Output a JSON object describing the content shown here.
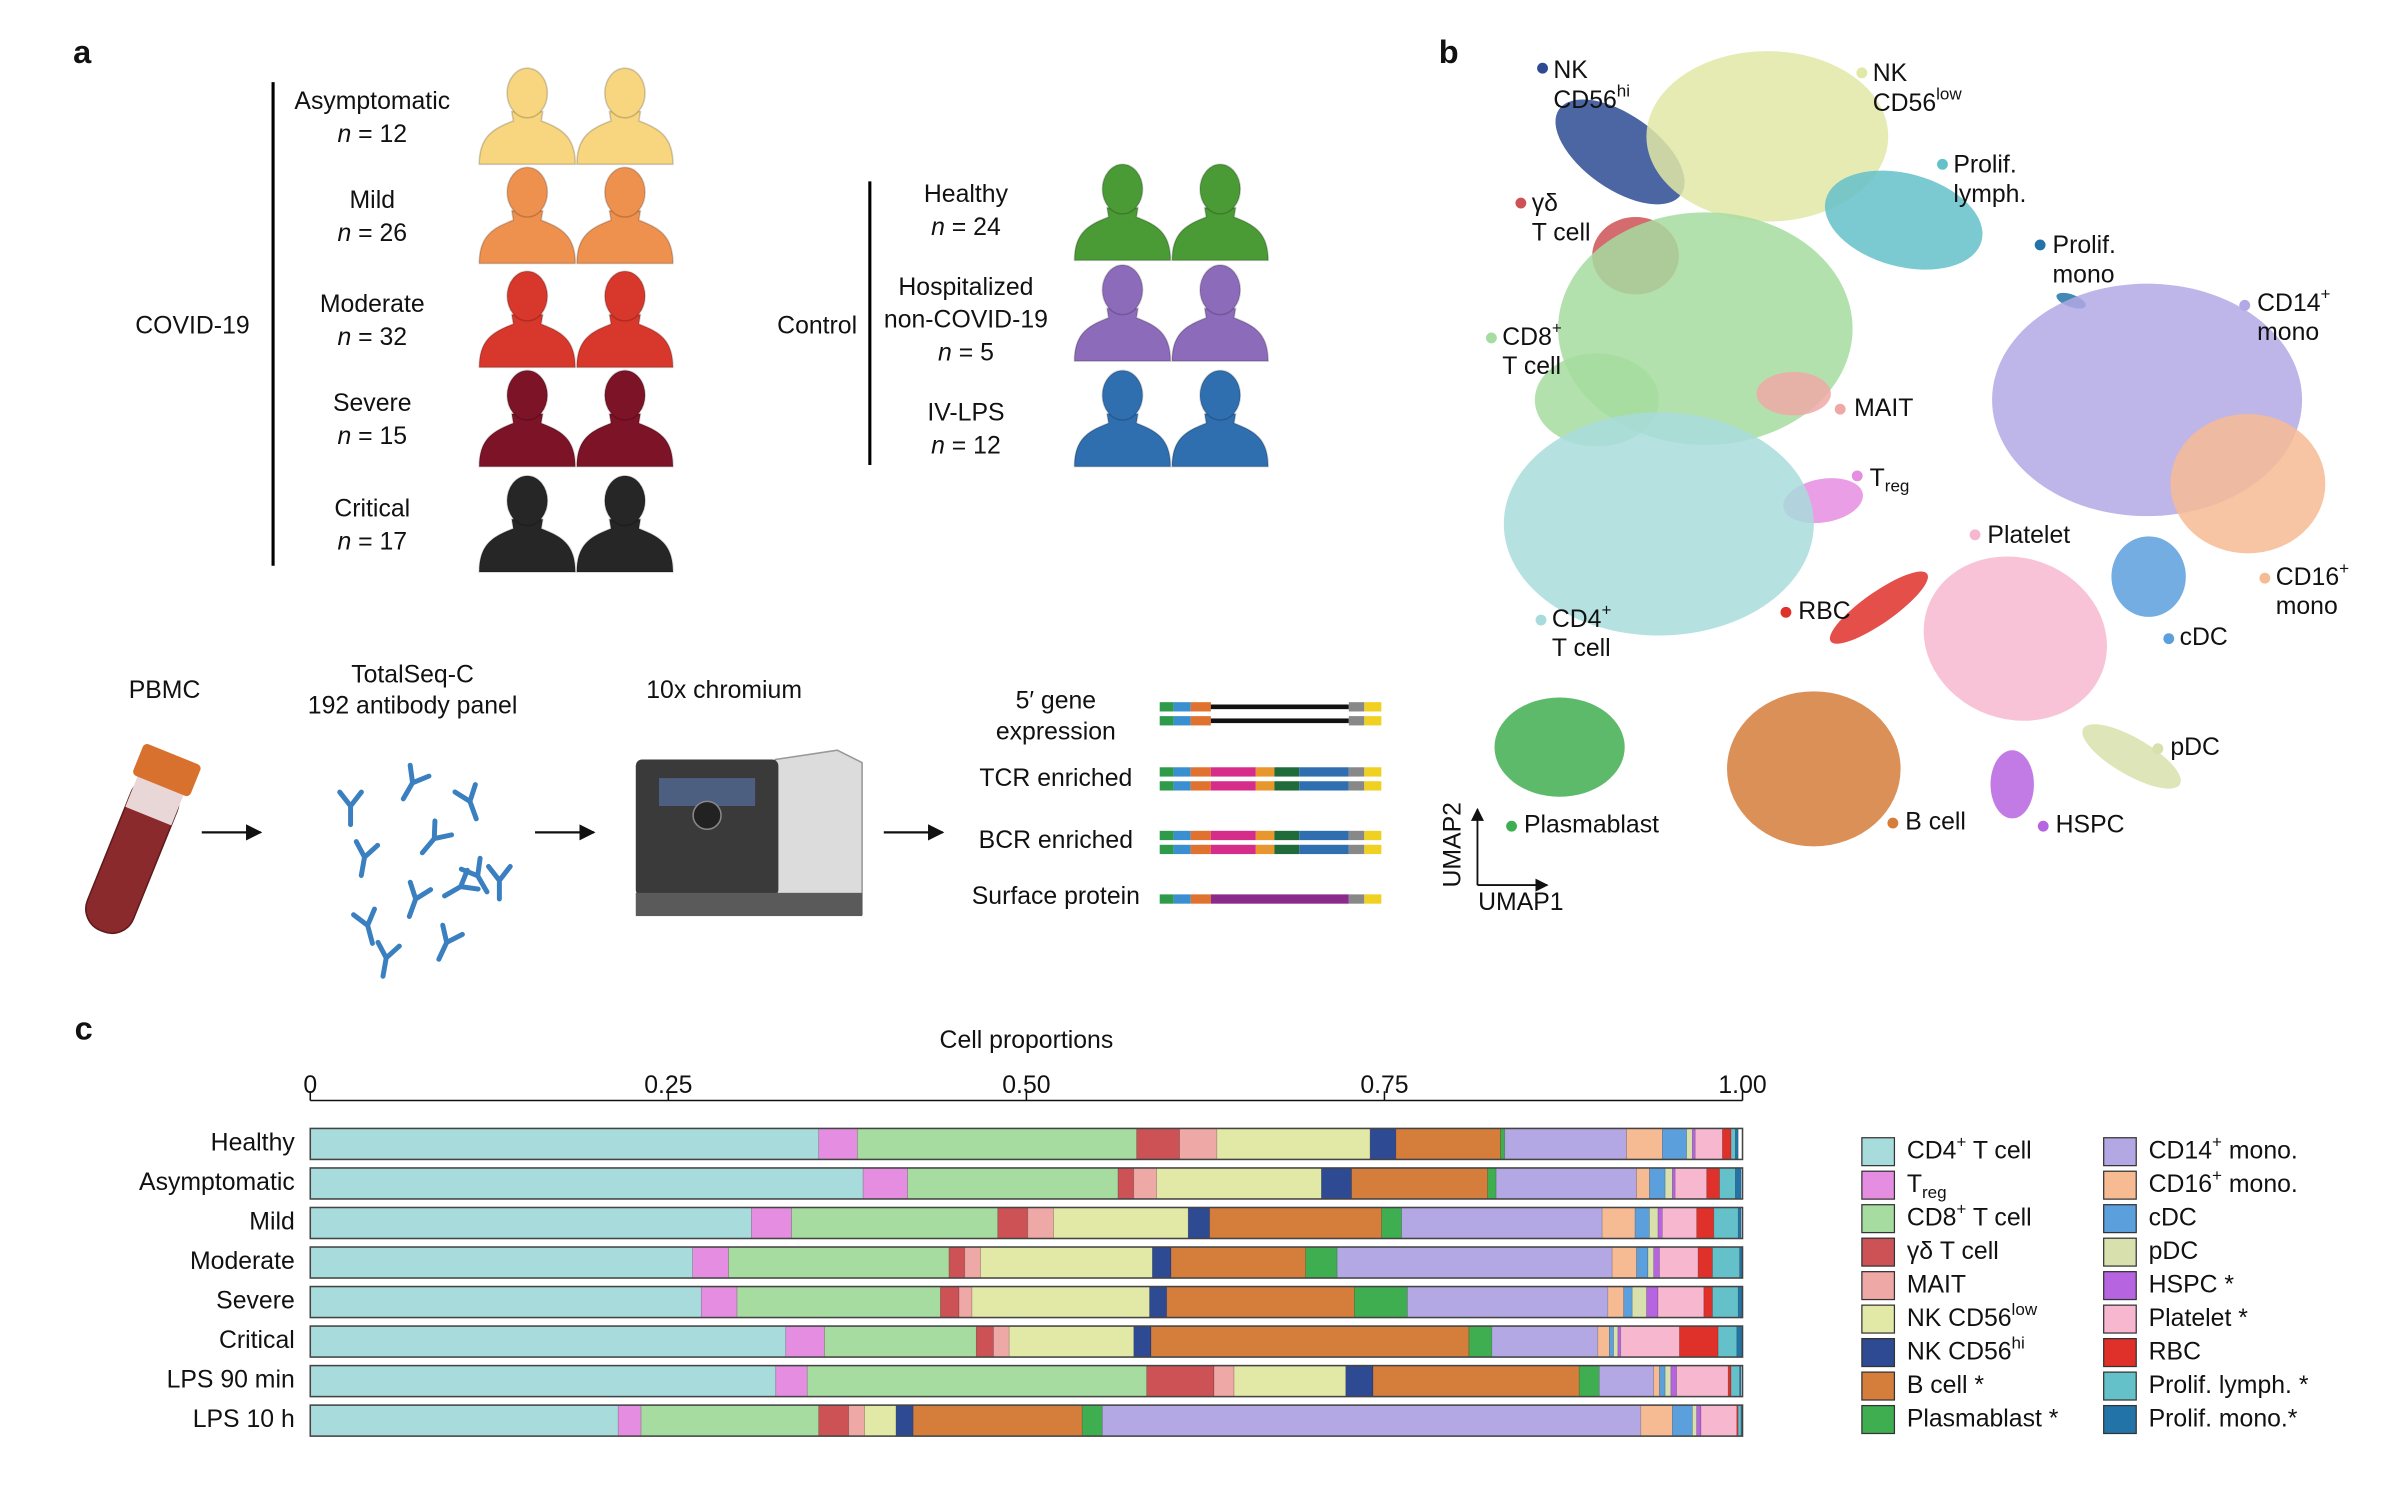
{
  "panel_a": {
    "label": "a",
    "covid": {
      "label": "COVID-19",
      "groups": [
        {
          "name": [
            "Asymptomatic"
          ],
          "n": [
            {
              "i": "n"
            },
            " = 12"
          ],
          "color": "#f8d57f"
        },
        {
          "name": [
            "Mild"
          ],
          "n": [
            {
              "i": "n"
            },
            " = 26"
          ],
          "color": "#ee914e"
        },
        {
          "name": [
            "Moderate"
          ],
          "n": [
            {
              "i": "n"
            },
            " = 32"
          ],
          "color": "#d8372b"
        },
        {
          "name": [
            "Severe"
          ],
          "n": [
            {
              "i": "n"
            },
            " = 15"
          ],
          "color": "#7d1327"
        },
        {
          "name": [
            "Critical"
          ],
          "n": [
            {
              "i": "n"
            },
            " = 17"
          ],
          "color": "#262626"
        }
      ]
    },
    "control": {
      "label": "Control",
      "groups": [
        {
          "name": [
            "Healthy"
          ],
          "n": [
            {
              "i": "n"
            },
            " = 24"
          ],
          "color": "#4a9a36"
        },
        {
          "name": [
            "Hospitalized",
            "non-COVID-19"
          ],
          "n": [
            {
              "i": "n"
            },
            " = 5"
          ],
          "color": "#8d6bbb"
        },
        {
          "name": [
            "IV-LPS"
          ],
          "n": [
            {
              "i": "n"
            },
            " = 12"
          ],
          "color": "#2f6fb0"
        }
      ]
    }
  },
  "workflow": {
    "steps": [
      [
        "PBMC"
      ],
      [
        "TotalSeq-C",
        "192 antibody panel"
      ],
      [
        "10x chromium"
      ]
    ],
    "libraries": [
      [
        "5′ gene",
        "expression"
      ],
      [
        "TCR enriched"
      ],
      [
        "BCR enriched"
      ],
      [
        "Surface protein"
      ]
    ]
  },
  "panel_b": {
    "label": "b",
    "xlabel": "UMAP1",
    "ylabel": "UMAP2",
    "clusters": [
      {
        "lines": [
          "NK",
          [
            "CD56",
            {
              "sup": "hi"
            }
          ]
        ],
        "color": "#2d4a93"
      },
      {
        "lines": [
          "NK",
          [
            "CD56",
            {
              "sup": "low"
            }
          ]
        ],
        "color": "#e2e8a6"
      },
      {
        "lines": [
          "Prolif.",
          "lymph."
        ],
        "color": "#64c1c9"
      },
      {
        "lines": [
          "γδ",
          "T cell"
        ],
        "color": "#cc5256"
      },
      {
        "lines": [
          "Prolif.",
          "mono"
        ],
        "color": "#2274a8"
      },
      {
        "lines": [
          [
            "CD14",
            {
              "sup": "+"
            }
          ],
          "mono"
        ],
        "color": "#b3a8e4"
      },
      {
        "lines": [
          [
            "CD8",
            {
              "sup": "+"
            }
          ],
          "T cell"
        ],
        "color": "#a6dca0"
      },
      {
        "lines": [
          "MAIT"
        ],
        "color": "#eea8a6"
      },
      {
        "lines": [
          [
            "T",
            {
              "sub": "reg"
            }
          ]
        ],
        "color": "#e58de0"
      },
      {
        "lines": [
          "Platelet"
        ],
        "color": "#f7b8cf"
      },
      {
        "lines": [
          [
            "CD16",
            {
              "sup": "+"
            }
          ],
          "mono"
        ],
        "color": "#f7bb94"
      },
      {
        "lines": [
          "RBC"
        ],
        "color": "#e0302a"
      },
      {
        "lines": [
          [
            "CD4",
            {
              "sup": "+"
            }
          ],
          "T cell"
        ],
        "color": "#a8dcdc"
      },
      {
        "lines": [
          "cDC"
        ],
        "color": "#5b9fdc"
      },
      {
        "lines": [
          "pDC"
        ],
        "color": "#d8e0ad"
      },
      {
        "lines": [
          "Plasmablast"
        ],
        "color": "#3fae50"
      },
      {
        "lines": [
          "B cell"
        ],
        "color": "#d57d3b"
      },
      {
        "lines": [
          "HSPC"
        ],
        "color": "#b764e0"
      }
    ]
  },
  "chart_data": {
    "type": "stacked-barh",
    "panel_label": "c",
    "xlabel": "Cell proportions",
    "xlim": [
      0,
      1
    ],
    "xticks": [
      0,
      0.25,
      {
        "value": 0.5,
        "label": "0.50"
      },
      0.75,
      {
        "value": 1,
        "label": "1.00"
      }
    ],
    "categories": [
      "Healthy",
      "Asymptomatic",
      "Mild",
      "Moderate",
      "Severe",
      "Critical",
      "LPS 90 min",
      "LPS 10 h"
    ],
    "series": [
      {
        "name": [
          "CD4",
          {
            "sup": "+"
          },
          " T cell"
        ],
        "color": "#a8dcdc",
        "values": [
          0.355,
          0.386,
          0.308,
          0.267,
          0.273,
          0.332,
          0.325,
          0.215
        ]
      },
      {
        "name": [
          "T",
          {
            "sub": "reg"
          }
        ],
        "color": "#e58de0",
        "values": [
          0.027,
          0.031,
          0.028,
          0.025,
          0.025,
          0.027,
          0.022,
          0.016
        ]
      },
      {
        "name": [
          "CD8",
          {
            "sup": "+"
          },
          " T cell"
        ],
        "color": "#a6dca0",
        "values": [
          0.195,
          0.147,
          0.144,
          0.154,
          0.142,
          0.106,
          0.237,
          0.124
        ]
      },
      {
        "name": [
          "γδ T cell"
        ],
        "color": "#cc5256",
        "values": [
          0.03,
          0.011,
          0.021,
          0.011,
          0.013,
          0.012,
          0.047,
          0.021
        ]
      },
      {
        "name": [
          "MAIT"
        ],
        "color": "#eea8a6",
        "values": [
          0.026,
          0.016,
          0.018,
          0.011,
          0.009,
          0.011,
          0.014,
          0.011
        ]
      },
      {
        "name": [
          "NK CD56",
          {
            "sup": "low"
          }
        ],
        "color": "#e2e8a6",
        "values": [
          0.107,
          0.115,
          0.094,
          0.12,
          0.124,
          0.087,
          0.078,
          0.022
        ]
      },
      {
        "name": [
          "NK CD56",
          {
            "sup": "hi"
          }
        ],
        "color": "#2d4a93",
        "values": [
          0.018,
          0.021,
          0.015,
          0.013,
          0.012,
          0.012,
          0.019,
          0.012
        ]
      },
      {
        "name": [
          "B cell *"
        ],
        "color": "#d57d3b",
        "values": [
          0.073,
          0.095,
          0.12,
          0.094,
          0.131,
          0.222,
          0.144,
          0.118
        ]
      },
      {
        "name": [
          "Plasmablast *"
        ],
        "color": "#3fae50",
        "values": [
          0.003,
          0.006,
          0.014,
          0.022,
          0.037,
          0.016,
          0.014,
          0.014
        ]
      },
      {
        "name": [
          "CD14",
          {
            "sup": "+"
          },
          " mono."
        ],
        "color": "#b3a8e4",
        "values": [
          0.085,
          0.098,
          0.14,
          0.192,
          0.14,
          0.074,
          0.038,
          0.376
        ]
      },
      {
        "name": [
          "CD16",
          {
            "sup": "+"
          },
          " mono."
        ],
        "color": "#f7bb94",
        "values": [
          0.025,
          0.009,
          0.023,
          0.017,
          0.011,
          0.008,
          0.004,
          0.022
        ]
      },
      {
        "name": [
          "cDC"
        ],
        "color": "#5b9fdc",
        "values": [
          0.017,
          0.011,
          0.01,
          0.008,
          0.006,
          0.003,
          0.004,
          0.014
        ]
      },
      {
        "name": [
          "pDC"
        ],
        "color": "#d8e0ad",
        "values": [
          0.004,
          0.005,
          0.006,
          0.004,
          0.01,
          0.003,
          0.004,
          0.003
        ]
      },
      {
        "name": [
          "HSPC *"
        ],
        "color": "#b764e0",
        "values": [
          0.002,
          0.002,
          0.003,
          0.004,
          0.008,
          0.002,
          0.004,
          0.003
        ]
      },
      {
        "name": [
          "Platelet *"
        ],
        "color": "#f7b8cf",
        "values": [
          0.019,
          0.022,
          0.024,
          0.027,
          0.032,
          0.041,
          0.036,
          0.025
        ]
      },
      {
        "name": [
          "RBC"
        ],
        "color": "#e0302a",
        "values": [
          0.006,
          0.009,
          0.012,
          0.01,
          0.006,
          0.027,
          0.002,
          0.001
        ]
      },
      {
        "name": [
          "Prolif. lymph. *"
        ],
        "color": "#64c1c9",
        "values": [
          0.003,
          0.011,
          0.017,
          0.019,
          0.018,
          0.013,
          0.006,
          0.002
        ]
      },
      {
        "name": [
          "Prolif. mono.*"
        ],
        "color": "#2274a8",
        "values": [
          0.002,
          0.004,
          0.002,
          0.002,
          0.003,
          0.004,
          0.001,
          0.001
        ]
      }
    ]
  }
}
